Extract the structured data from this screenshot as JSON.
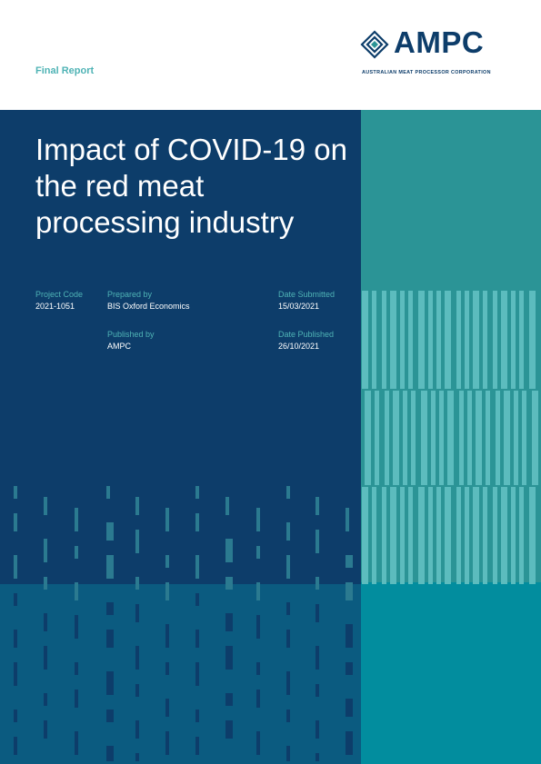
{
  "header": {
    "report_type": "Final Report",
    "logo": {
      "wordmark": "AMPC",
      "subtitle": "AUSTRALIAN MEAT PROCESSOR CORPORATION"
    }
  },
  "cover": {
    "title": "Impact of COVID-19 on the red meat processing industry"
  },
  "meta": {
    "project_code": {
      "label": "Project Code",
      "value": "2021-1051"
    },
    "prepared_by": {
      "label": "Prepared by",
      "value": "BIS Oxford Economics"
    },
    "date_submitted": {
      "label": "Date Submitted",
      "value": "15/03/2021"
    },
    "published_by": {
      "label": "Published by",
      "value": "AMPC"
    },
    "date_published": {
      "label": "Date Published",
      "value": "26/10/2021"
    }
  },
  "colors": {
    "navy": "#0d3d6a",
    "teal": "#2b9496",
    "light_teal": "#4fb3b5",
    "deep_teal": "#028d9e",
    "mid_blue": "#0b5b80"
  }
}
